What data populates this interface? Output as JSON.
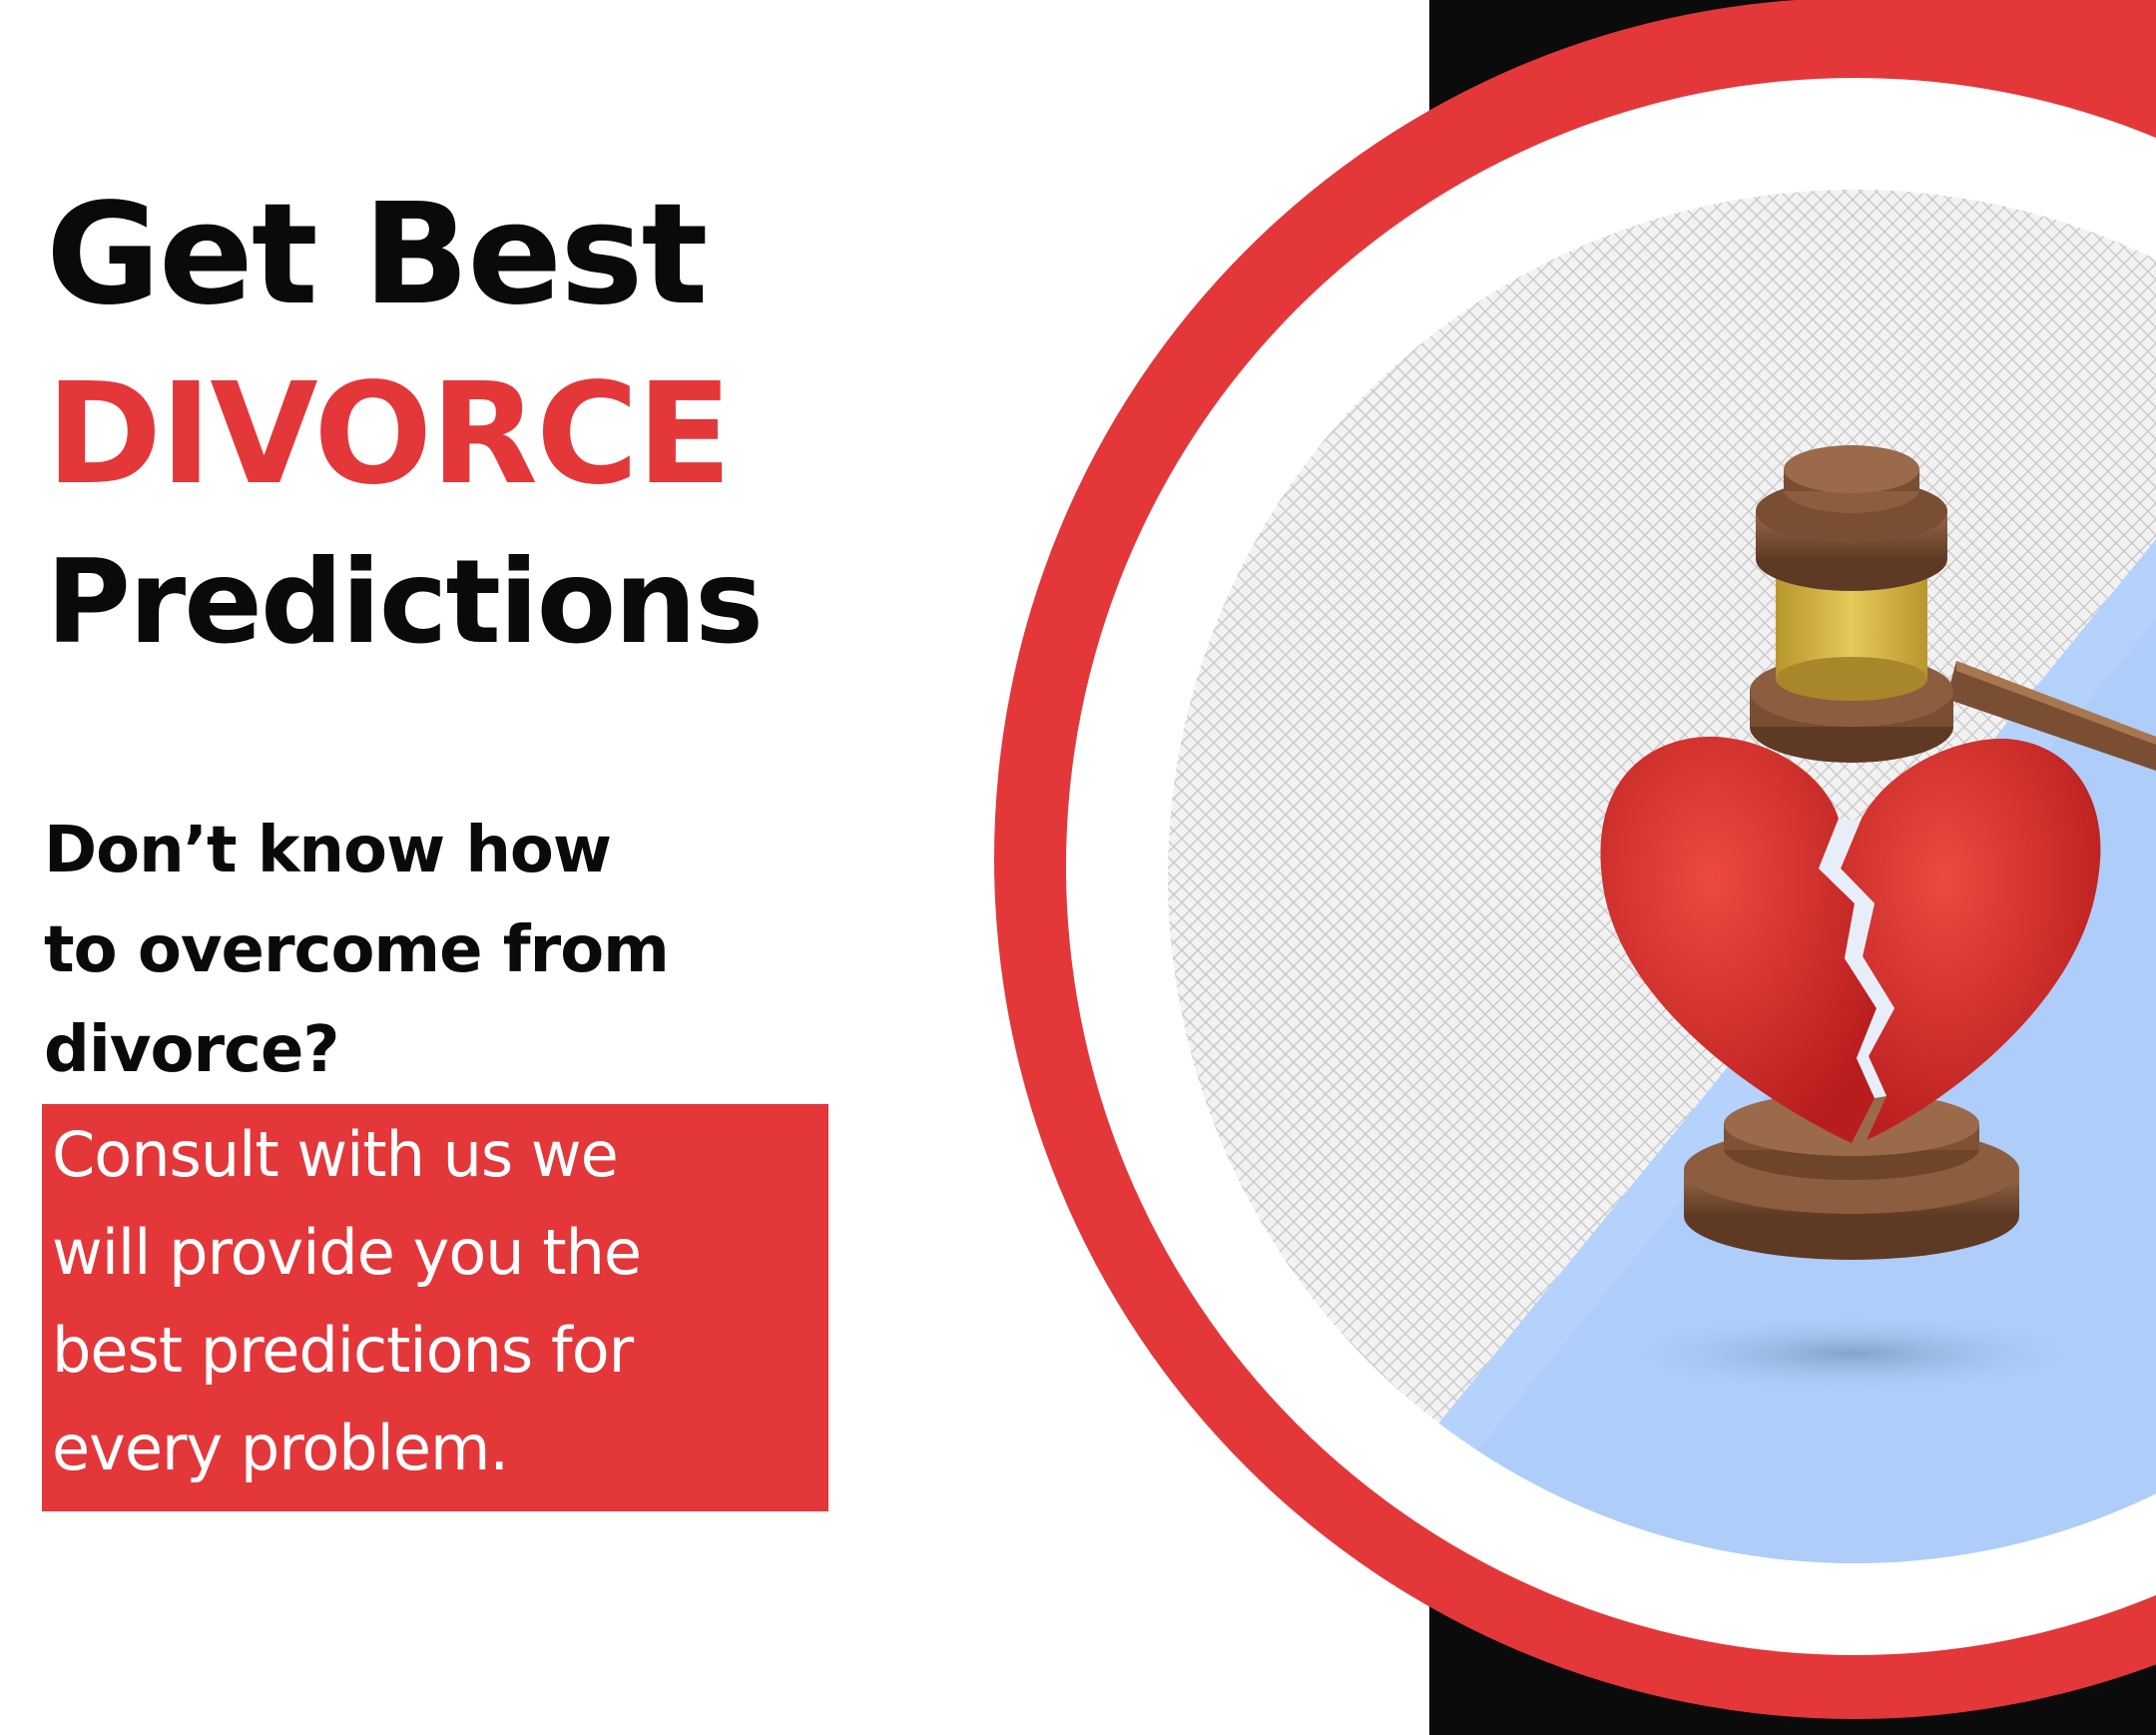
{
  "headline": {
    "line1": "Get Best",
    "line2": "DIVORCE",
    "line3": "Predictions"
  },
  "subheading": {
    "line1": "Don’t know how",
    "line2": "to overcome from",
    "line3": "divorce?"
  },
  "call_to_action": {
    "line1": "Consult with us we",
    "line2": "will provide you the",
    "line3": "best predictions for",
    "line4": "every problem."
  },
  "colors": {
    "accent_red": "#e3373a",
    "text_black": "#0a0a0a",
    "band_black": "#0b0b0b",
    "light_blue": "#b4d2fb",
    "wood_brown": "#7a4e33",
    "gold_band": "#d4b43c"
  },
  "illustration": {
    "icon": "gavel-broken-heart-icon"
  }
}
